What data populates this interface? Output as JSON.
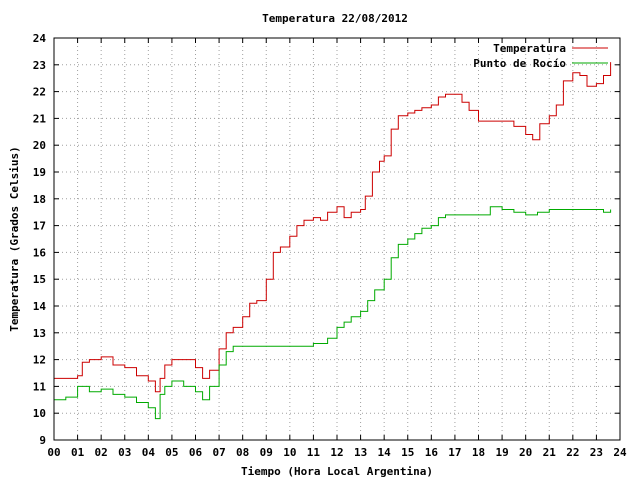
{
  "chart_data": {
    "type": "line",
    "title": "Temperatura 22/08/2012",
    "xlabel": "Tiempo (Hora Local Argentina)",
    "ylabel": "Temperatura (Grados Celsius)",
    "xlim": [
      0,
      24
    ],
    "ylim": [
      9,
      24
    ],
    "x_ticks": [
      "00",
      "01",
      "02",
      "03",
      "04",
      "05",
      "06",
      "07",
      "08",
      "09",
      "10",
      "11",
      "12",
      "13",
      "14",
      "15",
      "16",
      "17",
      "18",
      "19",
      "20",
      "21",
      "22",
      "23",
      "24"
    ],
    "y_ticks": [
      "9",
      "10",
      "11",
      "12",
      "13",
      "14",
      "15",
      "16",
      "17",
      "18",
      "19",
      "20",
      "21",
      "22",
      "23",
      "24"
    ],
    "grid": true,
    "legend_position": "top-right",
    "series": [
      {
        "name": "Temperatura",
        "color": "#cc0000",
        "x": [
          0.0,
          0.5,
          1.0,
          1.2,
          1.5,
          2.0,
          2.5,
          3.0,
          3.5,
          4.0,
          4.3,
          4.5,
          4.7,
          5.0,
          5.5,
          6.0,
          6.3,
          6.6,
          7.0,
          7.3,
          7.6,
          8.0,
          8.3,
          8.6,
          9.0,
          9.3,
          9.6,
          10.0,
          10.3,
          10.6,
          11.0,
          11.3,
          11.6,
          12.0,
          12.3,
          12.6,
          13.0,
          13.2,
          13.5,
          13.8,
          14.0,
          14.3,
          14.6,
          15.0,
          15.3,
          15.6,
          16.0,
          16.3,
          16.6,
          17.0,
          17.3,
          17.6,
          18.0,
          18.3,
          18.6,
          19.0,
          19.5,
          20.0,
          20.3,
          20.6,
          21.0,
          21.3,
          21.6,
          22.0,
          22.3,
          22.6,
          23.0,
          23.3,
          23.6
        ],
        "y": [
          11.3,
          11.3,
          11.4,
          11.9,
          12.0,
          12.1,
          11.8,
          11.7,
          11.4,
          11.2,
          10.8,
          11.3,
          11.8,
          12.0,
          12.0,
          11.7,
          11.3,
          11.6,
          12.4,
          13.0,
          13.2,
          13.6,
          14.1,
          14.2,
          15.0,
          16.0,
          16.2,
          16.6,
          17.0,
          17.2,
          17.3,
          17.2,
          17.5,
          17.7,
          17.3,
          17.5,
          17.6,
          18.1,
          19.0,
          19.4,
          19.6,
          20.6,
          21.1,
          21.2,
          21.3,
          21.4,
          21.5,
          21.8,
          21.9,
          21.9,
          21.6,
          21.3,
          20.9,
          20.9,
          20.9,
          20.9,
          20.7,
          20.4,
          20.2,
          20.8,
          21.1,
          21.5,
          22.4,
          22.7,
          22.6,
          22.2,
          22.3,
          22.6,
          23.1
        ]
      },
      {
        "name": "Punto de Rocío",
        "color": "#00aa00",
        "x": [
          0.0,
          0.5,
          1.0,
          1.5,
          2.0,
          2.5,
          3.0,
          3.5,
          4.0,
          4.3,
          4.5,
          4.7,
          5.0,
          5.5,
          6.0,
          6.3,
          6.6,
          7.0,
          7.3,
          7.6,
          8.0,
          8.5,
          9.0,
          9.5,
          10.0,
          10.5,
          11.0,
          11.3,
          11.6,
          12.0,
          12.3,
          12.6,
          13.0,
          13.3,
          13.6,
          14.0,
          14.3,
          14.6,
          15.0,
          15.3,
          15.6,
          16.0,
          16.3,
          16.6,
          17.0,
          17.5,
          18.0,
          18.5,
          19.0,
          19.5,
          20.0,
          20.5,
          21.0,
          21.5,
          22.0,
          22.5,
          23.0,
          23.3,
          23.6
        ],
        "y": [
          10.5,
          10.6,
          11.0,
          10.8,
          10.9,
          10.7,
          10.6,
          10.4,
          10.2,
          9.8,
          10.7,
          11.0,
          11.2,
          11.0,
          10.8,
          10.5,
          11.0,
          11.8,
          12.3,
          12.5,
          12.5,
          12.5,
          12.5,
          12.5,
          12.5,
          12.5,
          12.6,
          12.6,
          12.8,
          13.2,
          13.4,
          13.6,
          13.8,
          14.2,
          14.6,
          15.0,
          15.8,
          16.3,
          16.5,
          16.7,
          16.9,
          17.0,
          17.3,
          17.4,
          17.4,
          17.4,
          17.4,
          17.7,
          17.6,
          17.5,
          17.4,
          17.5,
          17.6,
          17.6,
          17.6,
          17.6,
          17.6,
          17.5,
          17.6
        ]
      }
    ]
  }
}
